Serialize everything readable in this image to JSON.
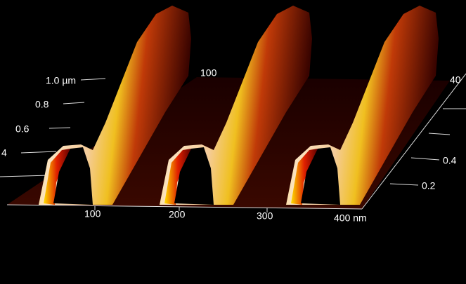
{
  "z_axis": {
    "ticks": [
      "1.0 µm",
      "0.8",
      "0.6",
      "4"
    ]
  },
  "x_axis": {
    "ticks": [
      "100",
      "200",
      "300",
      "400 nm"
    ]
  },
  "y_axis": {
    "ticks": [
      "0.2",
      "0.4",
      "40"
    ]
  },
  "back_label": "100"
}
